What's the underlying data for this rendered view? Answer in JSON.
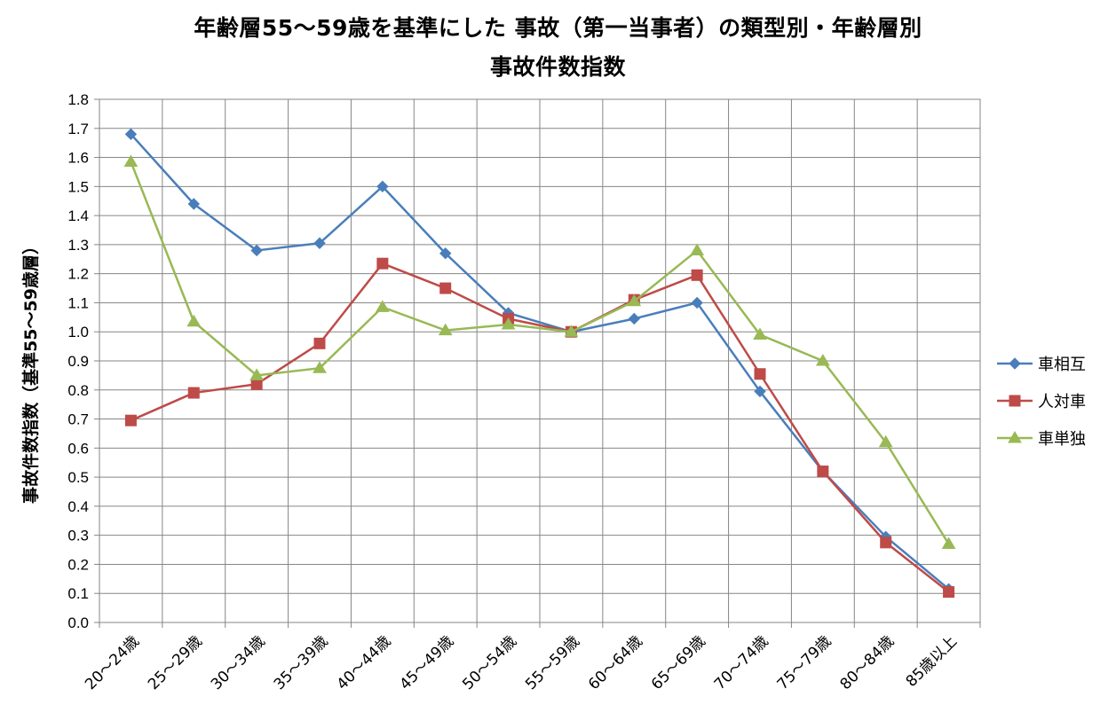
{
  "chart_data": {
    "type": "line",
    "title_line1": "年齢層55～59歳を基準にした 事故（第一当事者）の類型別・年齢層別",
    "title_line2": "事故件数指数",
    "ylabel": "事故件数指数（基準55～59歳層）",
    "xlabel": "",
    "ylim": [
      0,
      1.8
    ],
    "y_ticks": [
      "0.0",
      "0.1",
      "0.2",
      "0.3",
      "0.4",
      "0.5",
      "0.6",
      "0.7",
      "0.8",
      "0.9",
      "1.0",
      "1.1",
      "1.2",
      "1.3",
      "1.4",
      "1.5",
      "1.6",
      "1.7",
      "1.8"
    ],
    "grid": true,
    "legend_position": "right",
    "categories": [
      "20～24歳",
      "25～29歳",
      "30～34歳",
      "35～39歳",
      "40～44歳",
      "45～49歳",
      "50～54歳",
      "55～59歳",
      "60～64歳",
      "65～69歳",
      "70～74歳",
      "75～79歳",
      "80～84歳",
      "85歳以上"
    ],
    "series": [
      {
        "name": "車相互",
        "color": "#4a7ebb",
        "marker": "diamond",
        "values": [
          1.68,
          1.44,
          1.28,
          1.305,
          1.5,
          1.27,
          1.065,
          1.0,
          1.045,
          1.1,
          0.795,
          0.52,
          0.295,
          0.115
        ]
      },
      {
        "name": "人対車",
        "color": "#be4b48",
        "marker": "square",
        "values": [
          0.695,
          0.79,
          0.82,
          0.96,
          1.235,
          1.15,
          1.045,
          1.0,
          1.11,
          1.195,
          0.855,
          0.52,
          0.275,
          0.105
        ]
      },
      {
        "name": "車単独",
        "color": "#98b954",
        "marker": "triangle",
        "values": [
          1.585,
          1.035,
          0.85,
          0.875,
          1.085,
          1.005,
          1.025,
          1.0,
          1.105,
          1.28,
          0.99,
          0.9,
          0.62,
          0.27
        ]
      }
    ]
  }
}
